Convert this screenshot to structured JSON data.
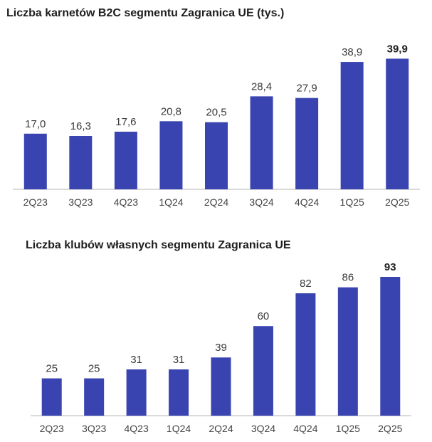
{
  "colors": {
    "bar": "#3a44b0",
    "axis": "#b5b5b5"
  },
  "chart_data": [
    {
      "type": "bar",
      "title": "Liczba karnetów B2C segmentu Zagranica UE (tys.)",
      "categories": [
        "2Q23",
        "3Q23",
        "4Q23",
        "1Q24",
        "2Q24",
        "3Q24",
        "4Q24",
        "1Q25",
        "2Q25"
      ],
      "values": [
        17.0,
        16.3,
        17.6,
        20.8,
        20.5,
        28.4,
        27.9,
        38.9,
        39.9
      ],
      "value_labels": [
        "17,0",
        "16,3",
        "17,6",
        "20,8",
        "20,5",
        "28,4",
        "27,9",
        "38,9",
        "39,9"
      ],
      "highlight_last": true,
      "xlabel": "",
      "ylabel": "",
      "ylim": [
        0,
        40
      ]
    },
    {
      "type": "bar",
      "title": "Liczba klubów własnych segmentu Zagranica UE",
      "categories": [
        "2Q23",
        "3Q23",
        "4Q23",
        "1Q24",
        "2Q24",
        "3Q24",
        "4Q24",
        "1Q25",
        "2Q25"
      ],
      "values": [
        25,
        25,
        31,
        31,
        39,
        60,
        82,
        86,
        93
      ],
      "value_labels": [
        "25",
        "25",
        "31",
        "31",
        "39",
        "60",
        "82",
        "86",
        "93"
      ],
      "highlight_last": true,
      "xlabel": "",
      "ylabel": "",
      "ylim": [
        0,
        93
      ]
    }
  ]
}
